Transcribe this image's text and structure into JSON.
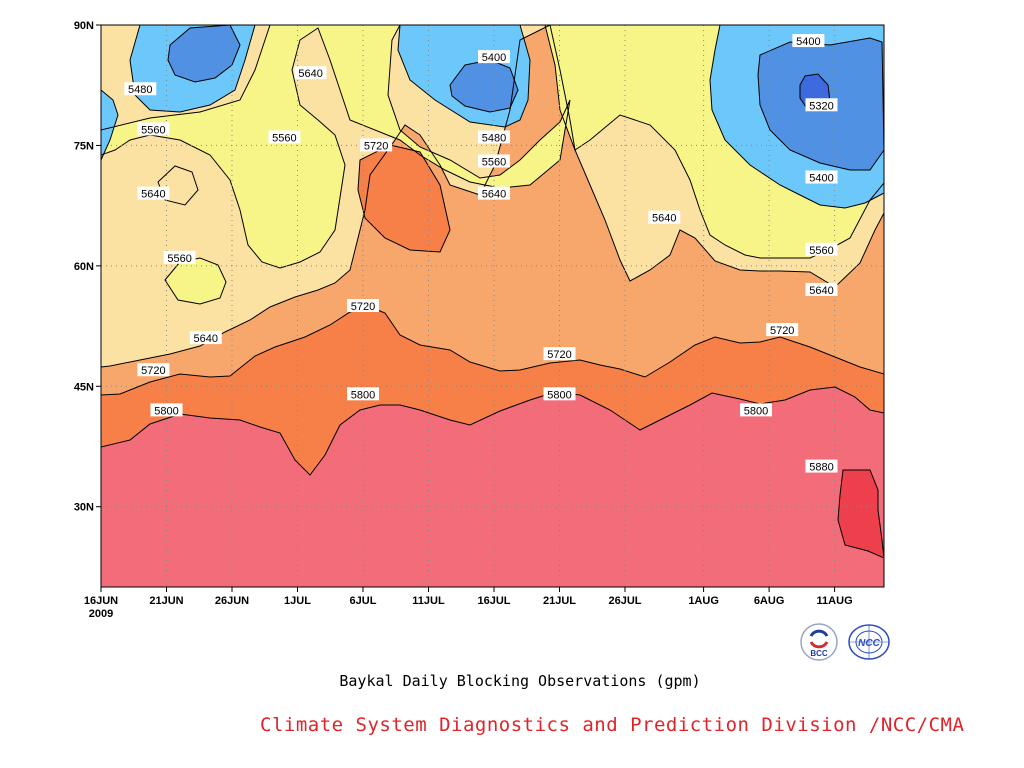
{
  "caption": "Baykal Daily Blocking Observations (gpm)",
  "credit": "Climate System Diagnostics and Prediction Division /NCC/CMA",
  "logos": {
    "left_text": "BCC",
    "right_text": "NCC"
  },
  "colors": {
    "c5320": "#3e6adf",
    "c5400": "#5191e3",
    "c5480": "#6cc8fa",
    "c5560": "#f7f587",
    "c5640": "#fbe1a2",
    "c5720": "#f8a76c",
    "c5800": "#f78048",
    "c5880": "#f36c7a",
    "c5960": "#ee3f4d",
    "contour": "#000000"
  },
  "chart_data": {
    "type": "heatmap",
    "subtype": "filled-contour",
    "x_axis": {
      "kind": "date",
      "start": "2009-06-16",
      "end": "2009-08-15",
      "tick_labels": [
        "16JUN",
        "21JUN",
        "26JUN",
        "1JUL",
        "6JUL",
        "11JUL",
        "16JUL",
        "21JUL",
        "26JUL",
        "1AUG",
        "6AUG",
        "11AUG"
      ],
      "year_label": "2009"
    },
    "y_axis": {
      "kind": "latitude",
      "range": [
        20,
        90
      ],
      "tick_labels": [
        "30N",
        "45N",
        "60N",
        "75N",
        "90N"
      ],
      "tick_values": [
        30,
        45,
        60,
        75,
        90
      ]
    },
    "grid": true,
    "units": "gpm",
    "contour_interval": 80,
    "levels": [
      5320,
      5400,
      5480,
      5560,
      5640,
      5720,
      5800,
      5880
    ],
    "contour_labels": [
      {
        "text": "5480",
        "date": "2009-06-19",
        "lat": 82
      },
      {
        "text": "5560",
        "date": "2009-06-20",
        "lat": 77
      },
      {
        "text": "5640",
        "date": "2009-06-20",
        "lat": 69
      },
      {
        "text": "5560",
        "date": "2009-06-22",
        "lat": 61
      },
      {
        "text": "5640",
        "date": "2009-06-24",
        "lat": 51
      },
      {
        "text": "5720",
        "date": "2009-06-20",
        "lat": 47
      },
      {
        "text": "5800",
        "date": "2009-06-21",
        "lat": 42
      },
      {
        "text": "5560",
        "date": "2009-06-30",
        "lat": 76
      },
      {
        "text": "5640",
        "date": "2009-07-02",
        "lat": 84
      },
      {
        "text": "5720",
        "date": "2009-07-07",
        "lat": 75
      },
      {
        "text": "5720",
        "date": "2009-07-06",
        "lat": 55
      },
      {
        "text": "5800",
        "date": "2009-07-06",
        "lat": 44
      },
      {
        "text": "5400",
        "date": "2009-07-16",
        "lat": 86
      },
      {
        "text": "5480",
        "date": "2009-07-16",
        "lat": 76
      },
      {
        "text": "5560",
        "date": "2009-07-16",
        "lat": 73
      },
      {
        "text": "5640",
        "date": "2009-07-16",
        "lat": 69
      },
      {
        "text": "5720",
        "date": "2009-07-21",
        "lat": 49
      },
      {
        "text": "5800",
        "date": "2009-07-21",
        "lat": 44
      },
      {
        "text": "5640",
        "date": "2009-07-29",
        "lat": 66
      },
      {
        "text": "5400",
        "date": "2009-08-09",
        "lat": 88
      },
      {
        "text": "5320",
        "date": "2009-08-10",
        "lat": 80
      },
      {
        "text": "5400",
        "date": "2009-08-10",
        "lat": 71
      },
      {
        "text": "5560",
        "date": "2009-08-10",
        "lat": 62
      },
      {
        "text": "5640",
        "date": "2009-08-10",
        "lat": 57
      },
      {
        "text": "5720",
        "date": "2009-08-07",
        "lat": 52
      },
      {
        "text": "5800",
        "date": "2009-08-05",
        "lat": 42
      },
      {
        "text": "5880",
        "date": "2009-08-10",
        "lat": 35
      }
    ]
  }
}
